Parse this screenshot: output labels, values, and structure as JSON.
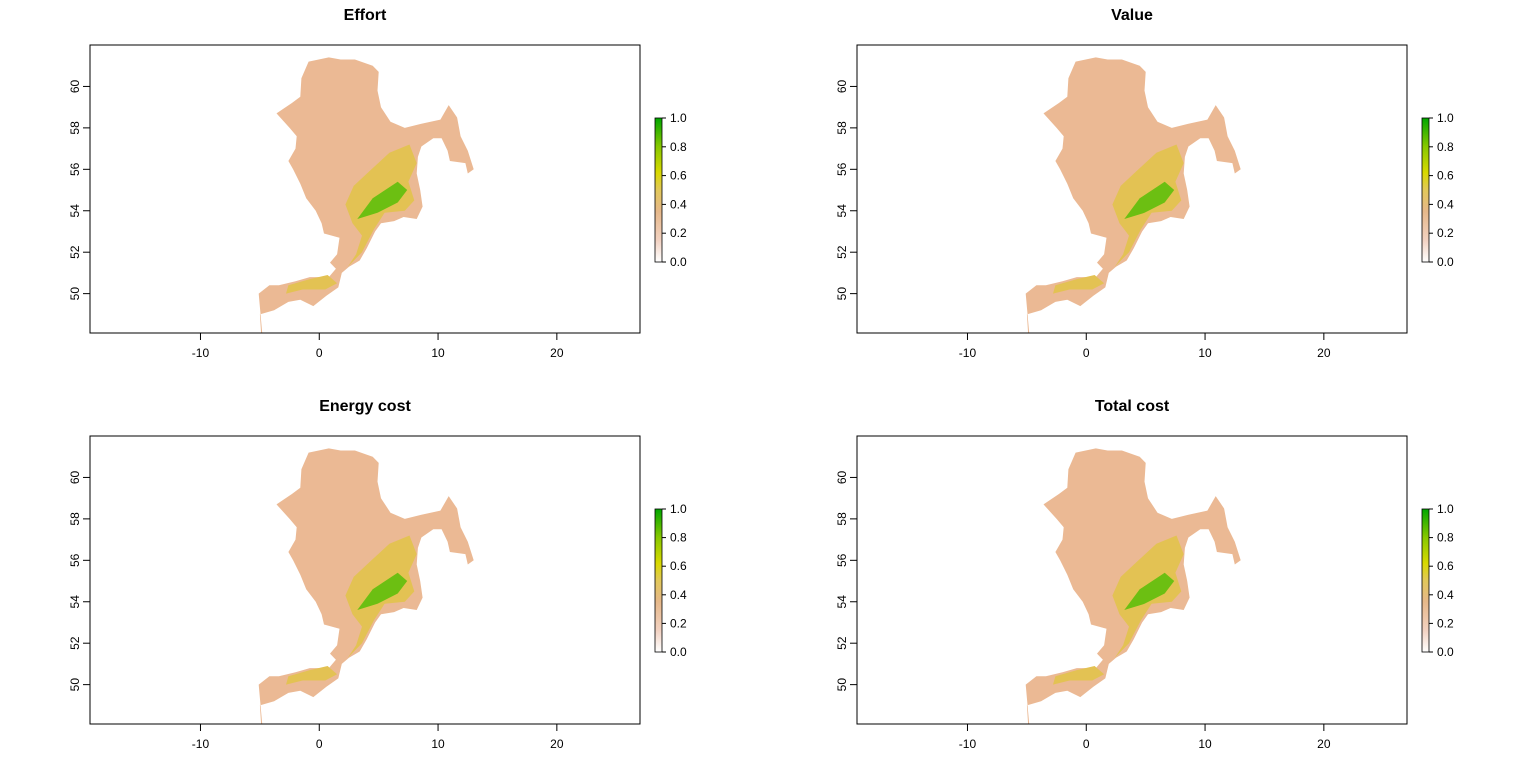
{
  "chart_data": [
    {
      "type": "heatmap",
      "title": "Effort",
      "xlabel": "",
      "ylabel": "",
      "xlim": [
        -19.3,
        27
      ],
      "ylim": [
        48.1,
        62
      ],
      "x_ticks": [
        -10,
        0,
        10,
        20
      ],
      "y_ticks": [
        50,
        52,
        54,
        56,
        58,
        60
      ],
      "legend": {
        "position": "right",
        "zlim": [
          0,
          1
        ],
        "ticks": [
          "0.0",
          "0.2",
          "0.4",
          "0.6",
          "0.8",
          "1.0"
        ]
      }
    },
    {
      "type": "heatmap",
      "title": "Value",
      "xlabel": "",
      "ylabel": "",
      "xlim": [
        -19.3,
        27
      ],
      "ylim": [
        48.1,
        62
      ],
      "x_ticks": [
        -10,
        0,
        10,
        20
      ],
      "y_ticks": [
        50,
        52,
        54,
        56,
        58,
        60
      ],
      "legend": {
        "position": "right",
        "zlim": [
          0,
          1
        ],
        "ticks": [
          "0.0",
          "0.2",
          "0.4",
          "0.6",
          "0.8",
          "1.0"
        ]
      }
    },
    {
      "type": "heatmap",
      "title": "Energy cost",
      "xlabel": "",
      "ylabel": "",
      "xlim": [
        -19.3,
        27
      ],
      "ylim": [
        48.1,
        62
      ],
      "x_ticks": [
        -10,
        0,
        10,
        20
      ],
      "y_ticks": [
        50,
        52,
        54,
        56,
        58,
        60
      ],
      "legend": {
        "position": "right",
        "zlim": [
          0,
          1
        ],
        "ticks": [
          "0.0",
          "0.2",
          "0.4",
          "0.6",
          "0.8",
          "1.0"
        ]
      }
    },
    {
      "type": "heatmap",
      "title": "Total cost",
      "xlabel": "",
      "ylabel": "",
      "xlim": [
        -19.3,
        27
      ],
      "ylim": [
        48.1,
        62
      ],
      "x_ticks": [
        -10,
        0,
        10,
        20
      ],
      "y_ticks": [
        50,
        52,
        54,
        56,
        58,
        60
      ],
      "legend": {
        "position": "right",
        "zlim": [
          0,
          1
        ],
        "ticks": [
          "0.0",
          "0.2",
          "0.4",
          "0.6",
          "0.8",
          "1.0"
        ]
      }
    }
  ],
  "colors": {
    "ramp": [
      "#FFFFFF",
      "#F2D2C2",
      "#E6B88A",
      "#E2C85A",
      "#D9D900",
      "#88C800",
      "#00A600"
    ],
    "low": "#EBB994",
    "mid": "#E3C253",
    "high": "#6CBF12"
  }
}
